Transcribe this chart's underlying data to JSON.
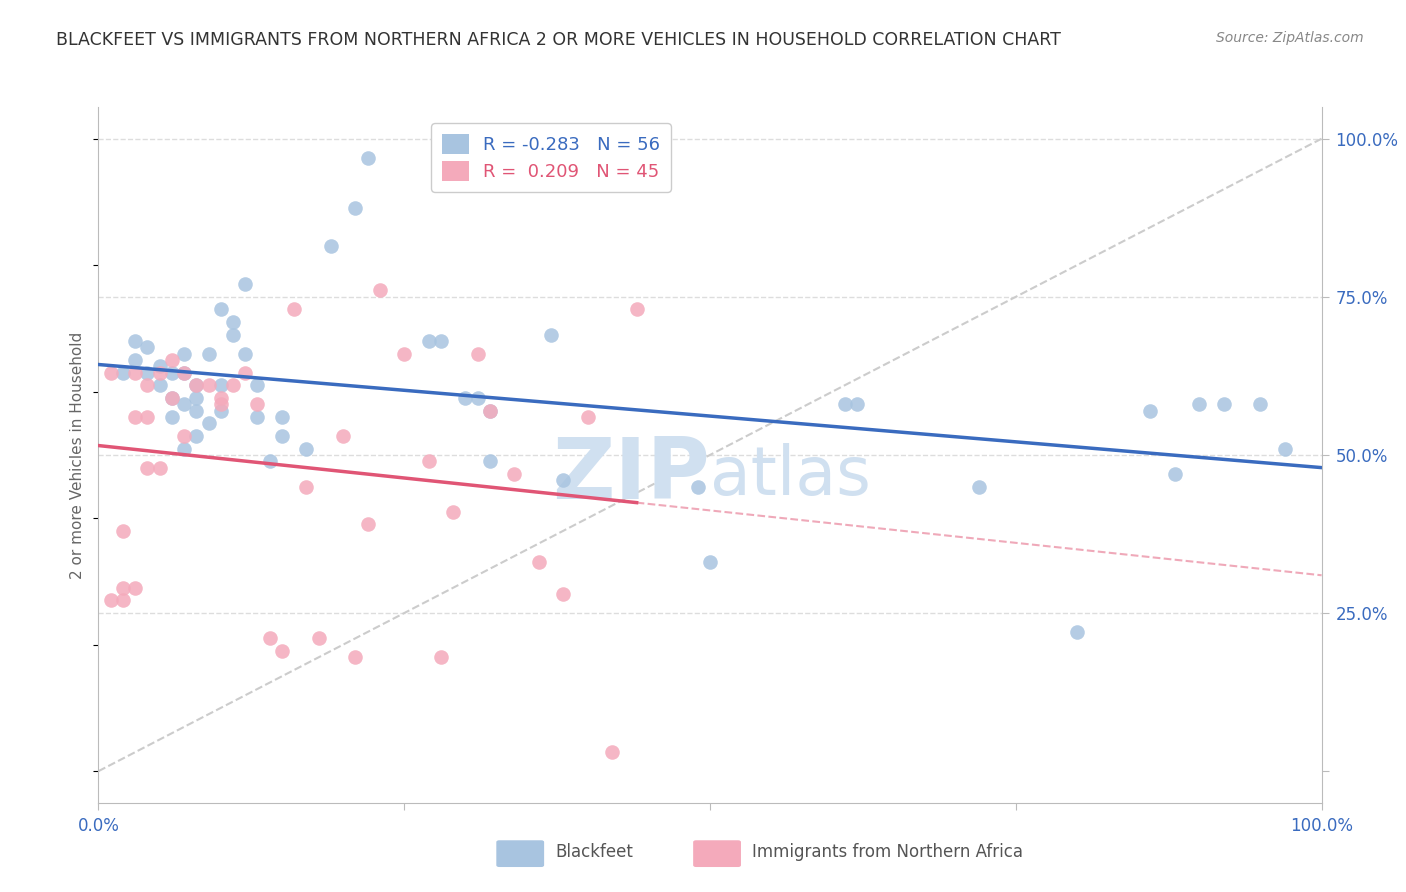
{
  "title": "BLACKFEET VS IMMIGRANTS FROM NORTHERN AFRICA 2 OR MORE VEHICLES IN HOUSEHOLD CORRELATION CHART",
  "source": "Source: ZipAtlas.com",
  "ylabel": "2 or more Vehicles in Household",
  "blue_R": -0.283,
  "blue_N": 56,
  "pink_R": 0.209,
  "pink_N": 45,
  "blue_color": "#A8C4E0",
  "pink_color": "#F4AABB",
  "blue_line_color": "#3A6BBF",
  "pink_line_color": "#E05575",
  "diagonal_color": "#CCCCCC",
  "background_color": "#FFFFFF",
  "grid_color": "#DDDDDD",
  "title_color": "#333333",
  "right_axis_color": "#3A6BBF",
  "legend_label_blue": "Blackfeet",
  "legend_label_pink": "Immigrants from Northern Africa",
  "blue_scatter_x": [
    0.02,
    0.03,
    0.03,
    0.04,
    0.04,
    0.05,
    0.05,
    0.06,
    0.06,
    0.06,
    0.07,
    0.07,
    0.07,
    0.07,
    0.08,
    0.08,
    0.08,
    0.08,
    0.09,
    0.09,
    0.1,
    0.1,
    0.1,
    0.11,
    0.11,
    0.12,
    0.12,
    0.13,
    0.13,
    0.14,
    0.15,
    0.15,
    0.17,
    0.19,
    0.21,
    0.22,
    0.27,
    0.28,
    0.3,
    0.31,
    0.32,
    0.32,
    0.37,
    0.38,
    0.49,
    0.5,
    0.61,
    0.62,
    0.72,
    0.8,
    0.86,
    0.88,
    0.9,
    0.92,
    0.95,
    0.97
  ],
  "blue_scatter_y": [
    0.63,
    0.65,
    0.68,
    0.63,
    0.67,
    0.61,
    0.64,
    0.56,
    0.59,
    0.63,
    0.51,
    0.58,
    0.63,
    0.66,
    0.53,
    0.57,
    0.59,
    0.61,
    0.55,
    0.66,
    0.57,
    0.61,
    0.73,
    0.69,
    0.71,
    0.66,
    0.77,
    0.56,
    0.61,
    0.49,
    0.53,
    0.56,
    0.51,
    0.83,
    0.89,
    0.97,
    0.68,
    0.68,
    0.59,
    0.59,
    0.57,
    0.49,
    0.69,
    0.46,
    0.45,
    0.33,
    0.58,
    0.58,
    0.45,
    0.22,
    0.57,
    0.47,
    0.58,
    0.58,
    0.58,
    0.51
  ],
  "pink_scatter_x": [
    0.01,
    0.01,
    0.02,
    0.02,
    0.02,
    0.03,
    0.03,
    0.03,
    0.04,
    0.04,
    0.04,
    0.05,
    0.05,
    0.06,
    0.06,
    0.07,
    0.07,
    0.08,
    0.09,
    0.1,
    0.1,
    0.11,
    0.12,
    0.13,
    0.14,
    0.15,
    0.16,
    0.17,
    0.18,
    0.2,
    0.21,
    0.22,
    0.23,
    0.25,
    0.27,
    0.28,
    0.29,
    0.31,
    0.32,
    0.34,
    0.36,
    0.38,
    0.4,
    0.42,
    0.44
  ],
  "pink_scatter_y": [
    0.63,
    0.27,
    0.27,
    0.38,
    0.29,
    0.63,
    0.56,
    0.29,
    0.61,
    0.56,
    0.48,
    0.63,
    0.48,
    0.65,
    0.59,
    0.63,
    0.53,
    0.61,
    0.61,
    0.58,
    0.59,
    0.61,
    0.63,
    0.58,
    0.21,
    0.19,
    0.73,
    0.45,
    0.21,
    0.53,
    0.18,
    0.39,
    0.76,
    0.66,
    0.49,
    0.18,
    0.41,
    0.66,
    0.57,
    0.47,
    0.33,
    0.28,
    0.56,
    0.03,
    0.73
  ],
  "xlim": [
    0.0,
    1.0
  ],
  "ylim": [
    -0.05,
    1.05
  ],
  "ytick_positions": [
    0.0,
    0.25,
    0.5,
    0.75,
    1.0
  ],
  "ytick_labels": [
    "",
    "25.0%",
    "50.0%",
    "75.0%",
    "100.0%"
  ],
  "xtick_positions": [
    0.0,
    0.25,
    0.5,
    0.75,
    1.0
  ],
  "xtick_labels": [
    "0.0%",
    "",
    "",
    "",
    "100.0%"
  ],
  "watermark_zip": "ZIP",
  "watermark_atlas": "atlas",
  "watermark_color": "#D0E0F0"
}
